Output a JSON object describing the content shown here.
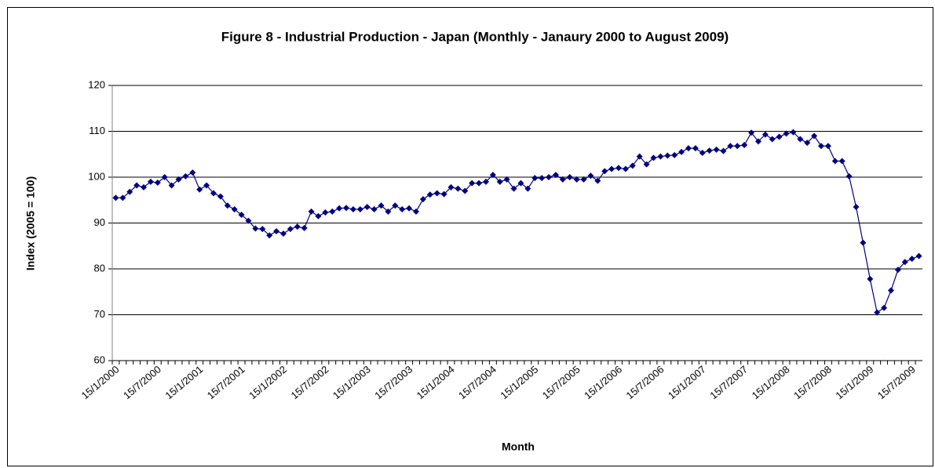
{
  "chart_data": {
    "type": "line",
    "title": "Figure 8 - Industrial Production - Japan (Monthly - Janaury 2000 to August 2009)",
    "x_label": "Month",
    "y_label": "Index (2005 = 100)",
    "categories": [
      "15/1/2000",
      null,
      null,
      null,
      null,
      null,
      "15/7/2000",
      null,
      null,
      null,
      null,
      null,
      "15/1/2001",
      null,
      null,
      null,
      null,
      null,
      "15/7/2001",
      null,
      null,
      null,
      null,
      null,
      "15/1/2002",
      null,
      null,
      null,
      null,
      null,
      "15/7/2002",
      null,
      null,
      null,
      null,
      null,
      "15/1/2003",
      null,
      null,
      null,
      null,
      null,
      "15/7/2003",
      null,
      null,
      null,
      null,
      null,
      "15/1/2004",
      null,
      null,
      null,
      null,
      null,
      "15/7/2004",
      null,
      null,
      null,
      null,
      null,
      "15/1/2005",
      null,
      null,
      null,
      null,
      null,
      "15/7/2005",
      null,
      null,
      null,
      null,
      null,
      "15/1/2006",
      null,
      null,
      null,
      null,
      null,
      "15/7/2006",
      null,
      null,
      null,
      null,
      null,
      "15/1/2007",
      null,
      null,
      null,
      null,
      null,
      "15/7/2007",
      null,
      null,
      null,
      null,
      null,
      "15/1/2008",
      null,
      null,
      null,
      null,
      null,
      "15/7/2008",
      null,
      null,
      null,
      null,
      null,
      "15/1/2009",
      null,
      null,
      null,
      null,
      null,
      "15/7/2009",
      null
    ],
    "values": [
      95.5,
      95.5,
      96.8,
      98.2,
      97.8,
      99.0,
      98.8,
      100.0,
      98.2,
      99.5,
      100.2,
      101.0,
      97.3,
      98.2,
      96.5,
      95.8,
      93.8,
      93.0,
      91.8,
      90.5,
      88.8,
      88.7,
      87.3,
      88.2,
      87.7,
      88.7,
      89.2,
      88.9,
      92.5,
      91.5,
      92.3,
      92.5,
      93.2,
      93.3,
      93.0,
      93.0,
      93.5,
      93.0,
      93.8,
      92.5,
      93.8,
      93.0,
      93.2,
      92.5,
      95.2,
      96.2,
      96.5,
      96.3,
      97.8,
      97.5,
      97.0,
      98.7,
      98.7,
      99.0,
      100.5,
      99.0,
      99.5,
      97.5,
      98.7,
      97.5,
      99.8,
      99.8,
      100.0,
      100.5,
      99.5,
      100.0,
      99.5,
      99.5,
      100.3,
      99.2,
      101.3,
      101.8,
      102.0,
      101.8,
      102.5,
      104.5,
      102.8,
      104.2,
      104.5,
      104.7,
      104.8,
      105.5,
      106.3,
      106.3,
      105.3,
      105.8,
      106.0,
      105.7,
      106.8,
      106.8,
      107.0,
      109.7,
      107.8,
      109.3,
      108.3,
      108.8,
      109.5,
      109.8,
      108.3,
      107.5,
      109.0,
      106.8,
      106.8,
      103.5,
      103.5,
      100.2,
      93.5,
      85.7,
      77.8,
      70.5,
      71.5,
      75.3,
      79.8,
      81.5,
      82.2,
      82.8
    ],
    "color": "#000080",
    "ylim": [
      60,
      120
    ],
    "yticks": [
      60,
      70,
      80,
      90,
      100,
      110,
      120
    ],
    "grid": true
  }
}
